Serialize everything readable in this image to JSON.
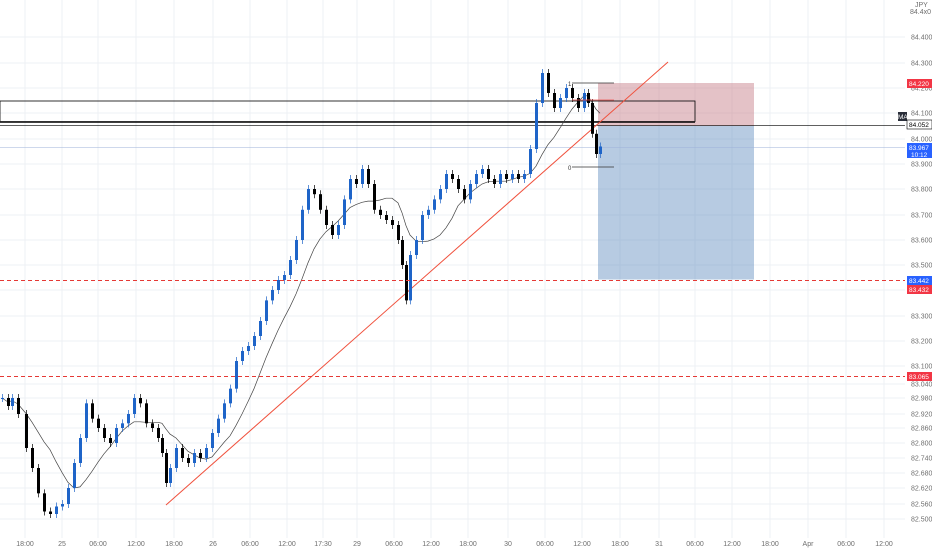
{
  "chart_data": {
    "type": "candlestick",
    "currency_label": "JPY",
    "y_ticks": [
      "84.400",
      "84.300",
      "84.200",
      "84.100",
      "84.000",
      "83.900",
      "83.800",
      "83.700",
      "83.600",
      "83.500",
      "83.400",
      "83.300",
      "83.200",
      "83.100",
      "83.040",
      "82.980",
      "82.920",
      "82.860",
      "82.800",
      "82.740",
      "82.680",
      "82.620",
      "82.560",
      "82.500"
    ],
    "x_ticks": [
      "18:00",
      "25",
      "06:00",
      "12:00",
      "18:00",
      "26",
      "06:00",
      "12:00",
      "17:30",
      "29",
      "06:00",
      "12:00",
      "18:00",
      "30",
      "06:00",
      "12:00",
      "18:00",
      "31",
      "06:00",
      "12:00",
      "18:00",
      "Apr",
      "06:00",
      "12:00"
    ],
    "price_tags": {
      "top_label": "84.4x0",
      "stop_label": "84.220",
      "zone_label": "84.052",
      "ma_label": "MA",
      "current_price": "83.967",
      "countdown": "10:12",
      "target_label": "83.442",
      "level_label": "83.432",
      "lower_level_label": "83.065"
    },
    "fib_labels": {
      "top": "1",
      "bottom": "0"
    },
    "levels": {
      "target": 83.442,
      "lower": 83.065,
      "zone_top": 84.12,
      "zone_bottom": 84.052,
      "entry": 84.05,
      "stop": 84.22,
      "current": 83.967
    },
    "candles": [
      [
        0,
        82.98
      ],
      [
        6,
        82.95
      ],
      [
        10,
        82.98
      ],
      [
        16,
        82.92
      ],
      [
        24,
        82.78
      ],
      [
        30,
        82.7
      ],
      [
        36,
        82.6
      ],
      [
        42,
        82.53
      ],
      [
        48,
        82.52
      ],
      [
        54,
        82.55
      ],
      [
        60,
        82.56
      ],
      [
        66,
        82.62
      ],
      [
        72,
        82.72
      ],
      [
        78,
        82.82
      ],
      [
        84,
        82.96
      ],
      [
        90,
        82.9
      ],
      [
        96,
        82.86
      ],
      [
        102,
        82.82
      ],
      [
        108,
        82.8
      ],
      [
        114,
        82.86
      ],
      [
        120,
        82.88
      ],
      [
        126,
        82.92
      ],
      [
        132,
        82.98
      ],
      [
        138,
        82.96
      ],
      [
        144,
        82.88
      ],
      [
        150,
        82.86
      ],
      [
        156,
        82.82
      ],
      [
        160,
        82.76
      ],
      [
        164,
        82.64
      ],
      [
        168,
        82.7
      ],
      [
        174,
        82.78
      ],
      [
        180,
        82.74
      ],
      [
        186,
        82.72
      ],
      [
        192,
        82.76
      ],
      [
        198,
        82.74
      ],
      [
        204,
        82.78
      ],
      [
        210,
        82.84
      ],
      [
        216,
        82.9
      ],
      [
        222,
        82.96
      ],
      [
        228,
        83.02
      ],
      [
        234,
        83.12
      ],
      [
        240,
        83.16
      ],
      [
        246,
        83.18
      ],
      [
        252,
        83.22
      ],
      [
        258,
        83.28
      ],
      [
        264,
        83.36
      ],
      [
        270,
        83.4
      ],
      [
        276,
        83.44
      ],
      [
        282,
        83.46
      ],
      [
        288,
        83.52
      ],
      [
        294,
        83.6
      ],
      [
        300,
        83.72
      ],
      [
        306,
        83.8
      ],
      [
        312,
        83.78
      ],
      [
        318,
        83.72
      ],
      [
        324,
        83.66
      ],
      [
        330,
        83.62
      ],
      [
        336,
        83.66
      ],
      [
        342,
        83.76
      ],
      [
        348,
        83.84
      ],
      [
        354,
        83.82
      ],
      [
        360,
        83.88
      ],
      [
        366,
        83.82
      ],
      [
        372,
        83.72
      ],
      [
        378,
        83.7
      ],
      [
        384,
        83.68
      ],
      [
        390,
        83.66
      ],
      [
        396,
        83.6
      ],
      [
        400,
        83.5
      ],
      [
        404,
        83.36
      ],
      [
        408,
        83.54
      ],
      [
        414,
        83.6
      ],
      [
        420,
        83.7
      ],
      [
        426,
        83.72
      ],
      [
        432,
        83.76
      ],
      [
        438,
        83.8
      ],
      [
        444,
        83.86
      ],
      [
        450,
        83.84
      ],
      [
        456,
        83.8
      ],
      [
        462,
        83.76
      ],
      [
        468,
        83.82
      ],
      [
        474,
        83.86
      ],
      [
        480,
        83.88
      ],
      [
        486,
        83.84
      ],
      [
        492,
        83.82
      ],
      [
        498,
        83.86
      ],
      [
        504,
        83.84
      ],
      [
        510,
        83.86
      ],
      [
        516,
        83.84
      ],
      [
        522,
        83.86
      ],
      [
        528,
        83.96
      ],
      [
        534,
        84.14
      ],
      [
        540,
        84.26
      ],
      [
        546,
        84.18
      ],
      [
        552,
        84.12
      ],
      [
        558,
        84.16
      ],
      [
        564,
        84.2
      ],
      [
        570,
        84.16
      ],
      [
        576,
        84.12
      ],
      [
        582,
        84.18
      ],
      [
        586,
        84.14
      ],
      [
        590,
        84.02
      ],
      [
        594,
        83.94
      ],
      [
        598,
        83.97
      ]
    ]
  }
}
